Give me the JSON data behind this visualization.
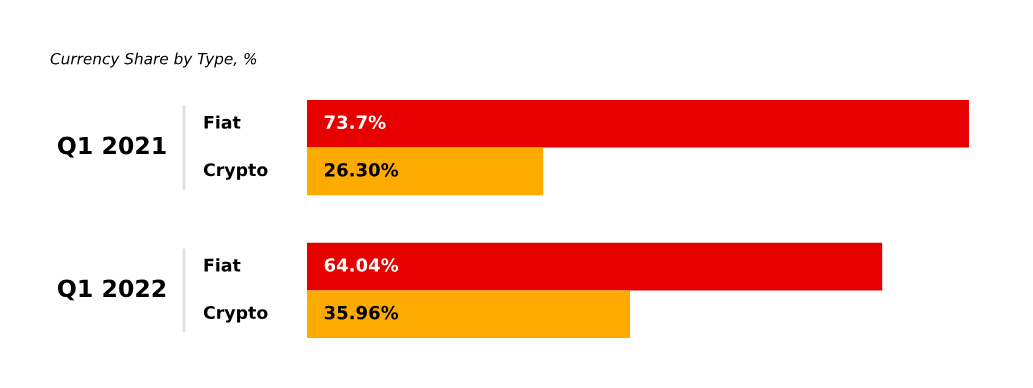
{
  "chart_data": {
    "type": "bar",
    "orientation": "horizontal",
    "title": "Currency Share by Type, %",
    "categories": [
      "Fiat",
      "Crypto",
      "Fiat",
      "Crypto"
    ],
    "values": [
      73.7,
      26.3,
      64.04,
      35.96
    ],
    "colors": [
      "#e60000",
      "#fdab00",
      "#e60000",
      "#fdab00"
    ],
    "value_labels": [
      "73.7%",
      "26.30%",
      "64.04%",
      "35.96%"
    ],
    "annotations": [
      "Q1 2021",
      "Q1 2022"
    ]
  }
}
